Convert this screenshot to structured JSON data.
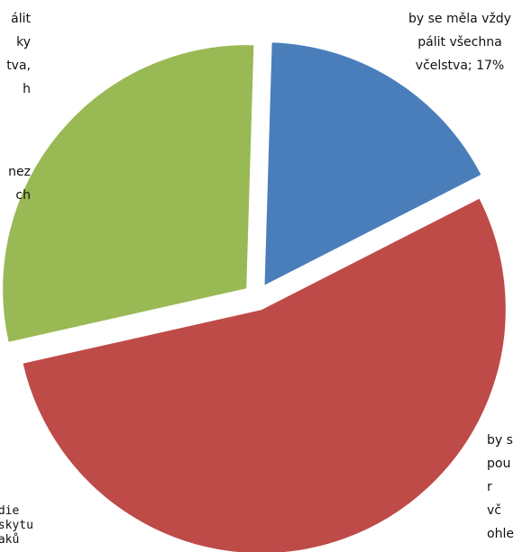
{
  "chart_data": {
    "type": "pie",
    "slices": [
      {
        "label": "by se měla vždy pálit všechna včelstva; 17%",
        "value": 17,
        "color": "#4a7ebb"
      },
      {
        "label": "by s... po... r... vč... ohle...",
        "value": 54,
        "color": "#be4b48"
      },
      {
        "label": "...álit ...ky ...tva, ...h ...ez ...ch",
        "value": 29,
        "color": "#98b954"
      }
    ],
    "exploded": true,
    "legend": "none"
  },
  "labels": {
    "blue": [
      "by se měla vždy",
      "pálit všechna",
      "včelstva; 17%"
    ],
    "green_top": [
      "álit",
      "ky",
      "tva,",
      "h"
    ],
    "green_bottom": [
      "nez",
      "ch"
    ],
    "red": [
      "by s",
      "pou",
      "r",
      "vč",
      "ohle"
    ],
    "bottom_left": [
      "udie",
      "ýskytu",
      "naků"
    ]
  }
}
